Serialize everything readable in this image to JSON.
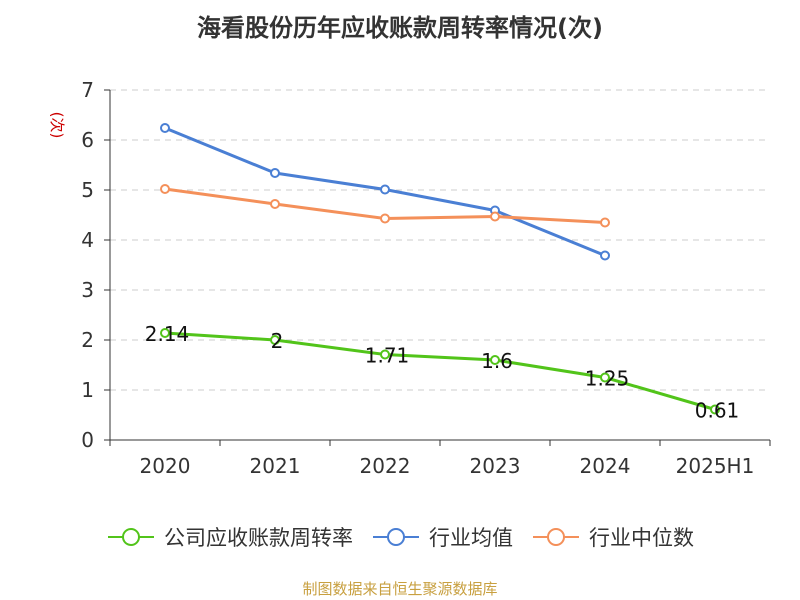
{
  "chart_data": {
    "type": "line",
    "title": "海看股份历年应收账款周转率情况(次)",
    "ylabel": "(次)",
    "categories": [
      "2020",
      "2021",
      "2022",
      "2023",
      "2024",
      "2025H1"
    ],
    "ylim": [
      0,
      7
    ],
    "yticks": [
      "0",
      "1",
      "2",
      "3",
      "4",
      "5",
      "6",
      "7"
    ],
    "grid": true,
    "legend_position": "bottom",
    "series": [
      {
        "name": "公司应收账款周转率",
        "color": "#52c41a",
        "values": [
          2.14,
          2,
          1.71,
          1.6,
          1.25,
          0.61
        ],
        "labels": [
          "2.14",
          "2",
          "1.71",
          "1.6",
          "1.25",
          "0.61"
        ]
      },
      {
        "name": "行业均值",
        "color": "#4a7fd4",
        "values": [
          6.24,
          5.34,
          5.01,
          4.59,
          3.69,
          null
        ]
      },
      {
        "name": "行业中位数",
        "color": "#f4905a",
        "values": [
          5.02,
          4.72,
          4.43,
          4.47,
          4.35,
          null
        ]
      }
    ]
  },
  "source_note": "制图数据来自恒生聚源数据库",
  "colors": {
    "ylabel": "#cc0000",
    "axis": "#333333",
    "grid": "#cccccc",
    "source": "#c8a040"
  }
}
